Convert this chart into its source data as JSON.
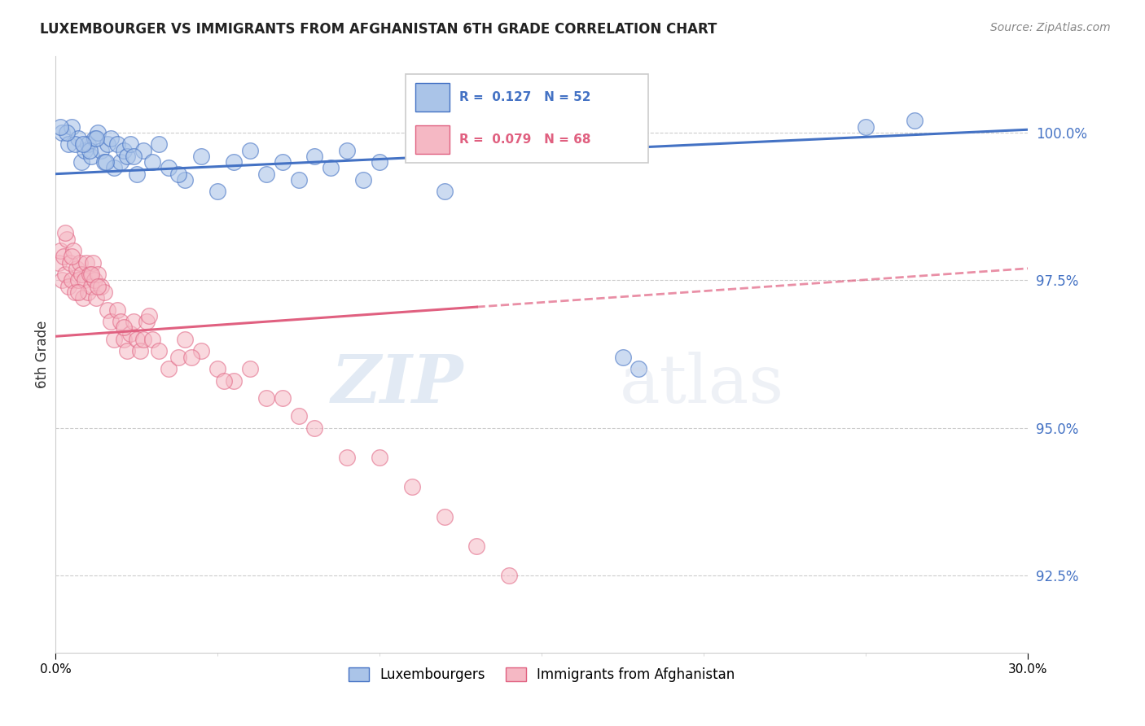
{
  "title": "LUXEMBOURGER VS IMMIGRANTS FROM AFGHANISTAN 6TH GRADE CORRELATION CHART",
  "source": "Source: ZipAtlas.com",
  "ylabel": "6th Grade",
  "ytick_values": [
    92.5,
    95.0,
    97.5,
    100.0
  ],
  "xlim": [
    0.0,
    30.0
  ],
  "ylim": [
    91.2,
    101.3
  ],
  "legend_label_blue": "Luxembourgers",
  "legend_label_pink": "Immigrants from Afghanistan",
  "blue_color": "#aac4e8",
  "pink_color": "#f5b8c4",
  "blue_edge_color": "#4472C4",
  "pink_edge_color": "#E06080",
  "blue_line_color": "#4472C4",
  "pink_line_color": "#E06080",
  "blue_scatter_x": [
    0.2,
    0.4,
    0.5,
    0.7,
    0.8,
    0.9,
    1.0,
    1.1,
    1.2,
    1.3,
    1.4,
    1.5,
    1.6,
    1.7,
    1.8,
    1.9,
    2.0,
    2.1,
    2.2,
    2.3,
    2.5,
    2.7,
    3.0,
    3.2,
    3.5,
    4.0,
    4.5,
    5.0,
    5.5,
    6.0,
    6.5,
    7.0,
    7.5,
    8.0,
    8.5,
    9.0,
    9.5,
    10.0,
    12.0,
    17.5,
    18.0,
    25.0,
    26.5,
    0.6,
    1.05,
    1.25,
    0.35,
    1.55,
    2.4,
    3.8,
    0.15,
    0.85
  ],
  "blue_scatter_y": [
    100.0,
    99.8,
    100.1,
    99.9,
    99.5,
    99.7,
    99.8,
    99.6,
    99.9,
    100.0,
    99.7,
    99.5,
    99.8,
    99.9,
    99.4,
    99.8,
    99.5,
    99.7,
    99.6,
    99.8,
    99.3,
    99.7,
    99.5,
    99.8,
    99.4,
    99.2,
    99.6,
    99.0,
    99.5,
    99.7,
    99.3,
    99.5,
    99.2,
    99.6,
    99.4,
    99.7,
    99.2,
    99.5,
    99.0,
    96.2,
    96.0,
    100.1,
    100.2,
    99.8,
    99.7,
    99.9,
    100.0,
    99.5,
    99.6,
    99.3,
    100.1,
    99.8
  ],
  "pink_scatter_x": [
    0.1,
    0.15,
    0.2,
    0.25,
    0.3,
    0.35,
    0.4,
    0.45,
    0.5,
    0.55,
    0.6,
    0.65,
    0.7,
    0.75,
    0.8,
    0.85,
    0.9,
    0.95,
    1.0,
    1.05,
    1.1,
    1.15,
    1.2,
    1.25,
    1.3,
    1.4,
    1.5,
    1.6,
    1.7,
    1.8,
    1.9,
    2.0,
    2.1,
    2.2,
    2.3,
    2.4,
    2.5,
    2.6,
    2.7,
    2.8,
    3.0,
    3.2,
    3.5,
    3.8,
    4.0,
    4.5,
    5.0,
    5.5,
    6.0,
    6.5,
    7.0,
    7.5,
    8.0,
    9.0,
    10.0,
    11.0,
    12.0,
    13.0,
    14.0,
    0.3,
    0.5,
    0.7,
    1.1,
    1.3,
    2.1,
    2.9,
    4.2,
    5.2
  ],
  "pink_scatter_y": [
    97.8,
    98.0,
    97.5,
    97.9,
    97.6,
    98.2,
    97.4,
    97.8,
    97.5,
    98.0,
    97.3,
    97.7,
    97.5,
    97.8,
    97.6,
    97.2,
    97.5,
    97.8,
    97.3,
    97.6,
    97.4,
    97.8,
    97.5,
    97.2,
    97.6,
    97.4,
    97.3,
    97.0,
    96.8,
    96.5,
    97.0,
    96.8,
    96.5,
    96.3,
    96.6,
    96.8,
    96.5,
    96.3,
    96.5,
    96.8,
    96.5,
    96.3,
    96.0,
    96.2,
    96.5,
    96.3,
    96.0,
    95.8,
    96.0,
    95.5,
    95.5,
    95.2,
    95.0,
    94.5,
    94.5,
    94.0,
    93.5,
    93.0,
    92.5,
    98.3,
    97.9,
    97.3,
    97.6,
    97.4,
    96.7,
    96.9,
    96.2,
    95.8
  ],
  "pink_solid_end_x": 13.0,
  "blue_trend_x0": 0.0,
  "blue_trend_y0": 99.3,
  "blue_trend_x1": 30.0,
  "blue_trend_y1": 100.05,
  "pink_trend_x0": 0.0,
  "pink_trend_y0": 96.55,
  "pink_trend_x1": 30.0,
  "pink_trend_y1": 97.7
}
